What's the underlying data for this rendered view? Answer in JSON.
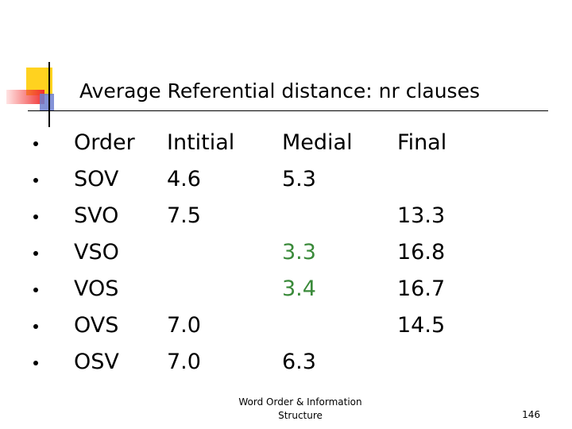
{
  "title": "Average Referential distance: nr clauses",
  "table": {
    "header": [
      "Order",
      "Intitial",
      "Medial",
      "Final"
    ],
    "rows": [
      [
        "SOV",
        "4.6",
        "5.3",
        null
      ],
      [
        "SVO",
        "7.5",
        null,
        "13.3"
      ],
      [
        "VSO",
        null,
        "3.3",
        "16.8"
      ],
      [
        "VOS",
        null,
        "3.4",
        "16.7"
      ],
      [
        "OVS",
        "7.0",
        null,
        "14.5"
      ],
      [
        "OSV",
        "7.0",
        "6.3",
        null
      ]
    ]
  },
  "footer": "Word Order & Information Structure",
  "page_number": "146"
}
